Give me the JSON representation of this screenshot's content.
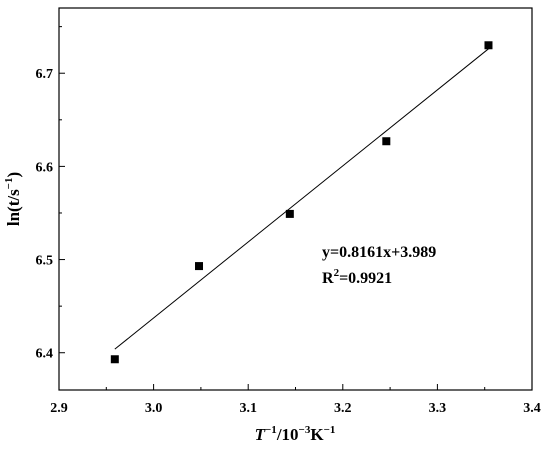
{
  "chart_data": {
    "type": "scatter",
    "title": "",
    "xlabel": {
      "main": "T",
      "sup1": "−1",
      "mid": "/10",
      "sup2": "−3",
      "unit": "K",
      "sup3": "−1"
    },
    "ylabel": {
      "main": "ln(t/s",
      "sup": "−1",
      "close": ")"
    },
    "xlim": [
      2.9,
      3.4
    ],
    "ylim": [
      6.36,
      6.77
    ],
    "xticks": [
      2.9,
      3.0,
      3.1,
      3.2,
      3.3,
      3.4
    ],
    "xtick_labels": [
      "2.9",
      "3.0",
      "3.1",
      "3.2",
      "3.3",
      "3.4"
    ],
    "yticks": [
      6.4,
      6.5,
      6.6,
      6.7
    ],
    "ytick_labels": [
      "6.4",
      "6.5",
      "6.6",
      "6.7"
    ],
    "grid": false,
    "legend": "none",
    "points": [
      {
        "x": 2.959,
        "y": 6.393
      },
      {
        "x": 3.048,
        "y": 6.493
      },
      {
        "x": 3.144,
        "y": 6.549
      },
      {
        "x": 3.246,
        "y": 6.627
      },
      {
        "x": 3.354,
        "y": 6.73
      }
    ],
    "fit_line": {
      "slope": 0.8161,
      "intercept": 3.989,
      "x_start": 2.959,
      "x_end": 3.354
    },
    "annotations": {
      "equation": "y=0.8161x+3.989",
      "r2_prefix": "R",
      "r2_sup": "2",
      "r2_value": "=0.9921"
    },
    "marker_color": "#000000",
    "line_color": "#000000"
  }
}
